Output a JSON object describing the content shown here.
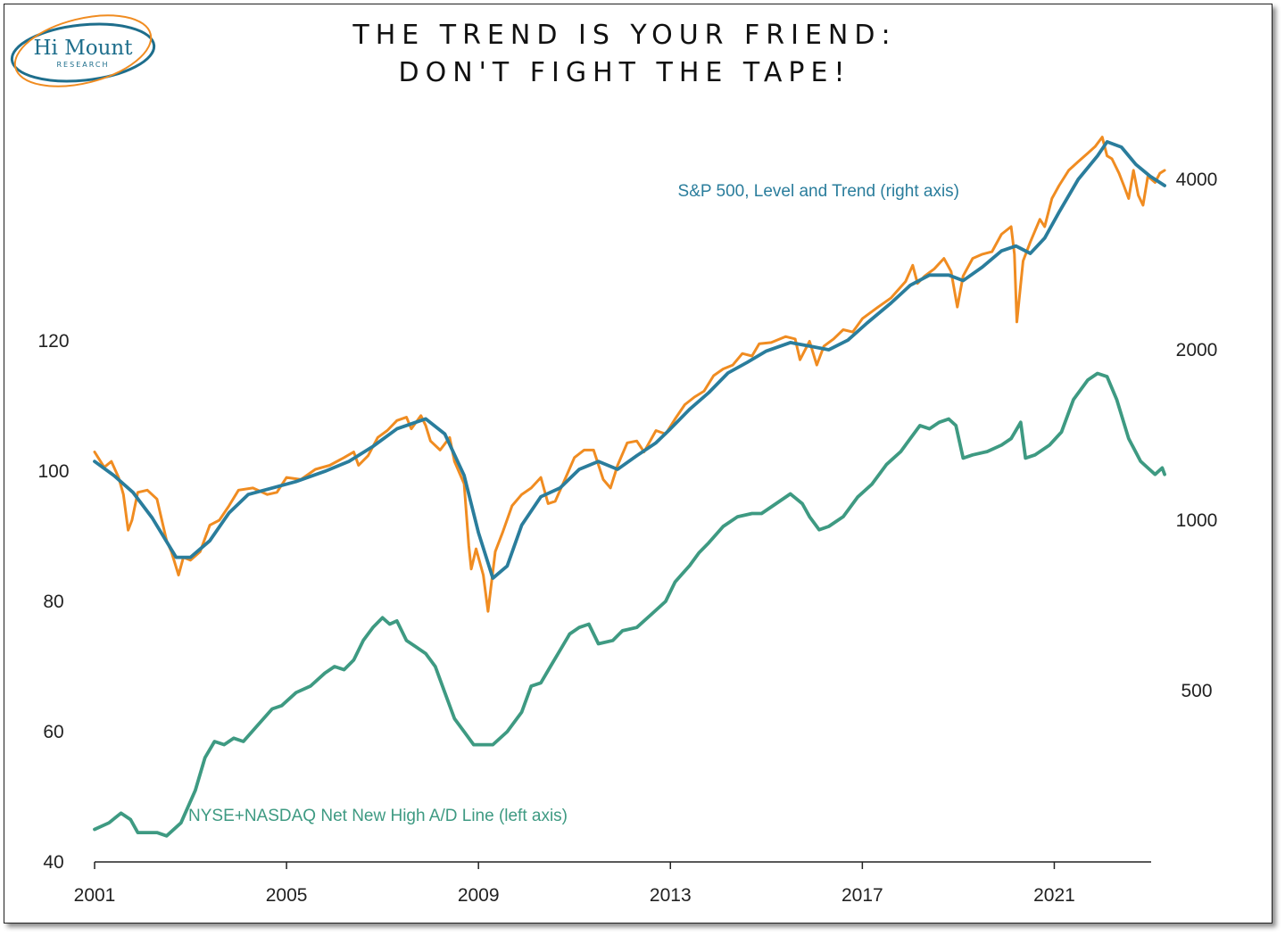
{
  "title": {
    "line1": "THE TREND IS YOUR FRIEND:",
    "line2": "DON'T FIGHT THE TAPE!"
  },
  "logo": {
    "name": "Hi Mount",
    "sub": "RESEARCH"
  },
  "colors": {
    "spx_level": "#F08C21",
    "spx_trend": "#2A7D9C",
    "ad_line": "#3E9A82",
    "axis": "#222222"
  },
  "chart_data": {
    "type": "line",
    "x_ticks": [
      "2001",
      "2005",
      "2009",
      "2013",
      "2017",
      "2021"
    ],
    "left_axis": {
      "ticks": [
        40,
        60,
        80,
        100,
        120
      ],
      "range": [
        40,
        160
      ]
    },
    "right_axis": {
      "scale": "log",
      "ticks": [
        500,
        1000,
        2000,
        4000
      ],
      "range": [
        180,
        5500
      ]
    },
    "annotations": {
      "spx": "S&P 500, Level and Trend (right axis)",
      "ad": "NYSE+NASDAQ Net New High A/D Line (left axis)"
    },
    "series": [
      {
        "axis": "right",
        "points": [
          [
            2001.0,
            1320
          ],
          [
            2001.2,
            1240
          ],
          [
            2001.35,
            1270
          ],
          [
            2001.5,
            1190
          ],
          [
            2001.6,
            1110
          ],
          [
            2001.7,
            960
          ],
          [
            2001.78,
            1000
          ],
          [
            2001.9,
            1120
          ],
          [
            2002.1,
            1130
          ],
          [
            2002.3,
            1090
          ],
          [
            2002.5,
            920
          ],
          [
            2002.6,
            880
          ],
          [
            2002.75,
            800
          ],
          [
            2002.85,
            860
          ],
          [
            2003.0,
            850
          ],
          [
            2003.2,
            880
          ],
          [
            2003.4,
            980
          ],
          [
            2003.6,
            1000
          ],
          [
            2003.8,
            1060
          ],
          [
            2004.0,
            1130
          ],
          [
            2004.3,
            1140
          ],
          [
            2004.6,
            1110
          ],
          [
            2004.8,
            1120
          ],
          [
            2005.0,
            1190
          ],
          [
            2005.3,
            1180
          ],
          [
            2005.6,
            1230
          ],
          [
            2005.9,
            1250
          ],
          [
            2006.2,
            1290
          ],
          [
            2006.4,
            1320
          ],
          [
            2006.5,
            1250
          ],
          [
            2006.7,
            1300
          ],
          [
            2006.9,
            1400
          ],
          [
            2007.1,
            1440
          ],
          [
            2007.3,
            1500
          ],
          [
            2007.5,
            1520
          ],
          [
            2007.6,
            1450
          ],
          [
            2007.8,
            1530
          ],
          [
            2007.9,
            1470
          ],
          [
            2008.0,
            1380
          ],
          [
            2008.2,
            1330
          ],
          [
            2008.4,
            1400
          ],
          [
            2008.5,
            1270
          ],
          [
            2008.7,
            1160
          ],
          [
            2008.8,
            900
          ],
          [
            2008.85,
            820
          ],
          [
            2008.95,
            890
          ],
          [
            2009.1,
            800
          ],
          [
            2009.2,
            690
          ],
          [
            2009.35,
            880
          ],
          [
            2009.5,
            950
          ],
          [
            2009.7,
            1060
          ],
          [
            2009.9,
            1110
          ],
          [
            2010.1,
            1140
          ],
          [
            2010.3,
            1190
          ],
          [
            2010.45,
            1070
          ],
          [
            2010.6,
            1080
          ],
          [
            2010.8,
            1180
          ],
          [
            2011.0,
            1290
          ],
          [
            2011.2,
            1330
          ],
          [
            2011.4,
            1330
          ],
          [
            2011.6,
            1180
          ],
          [
            2011.75,
            1140
          ],
          [
            2011.9,
            1250
          ],
          [
            2012.1,
            1370
          ],
          [
            2012.3,
            1380
          ],
          [
            2012.45,
            1320
          ],
          [
            2012.7,
            1440
          ],
          [
            2012.9,
            1420
          ],
          [
            2013.1,
            1510
          ],
          [
            2013.3,
            1600
          ],
          [
            2013.5,
            1650
          ],
          [
            2013.7,
            1690
          ],
          [
            2013.9,
            1800
          ],
          [
            2014.1,
            1850
          ],
          [
            2014.3,
            1880
          ],
          [
            2014.5,
            1970
          ],
          [
            2014.7,
            1950
          ],
          [
            2014.85,
            2050
          ],
          [
            2015.1,
            2060
          ],
          [
            2015.4,
            2110
          ],
          [
            2015.6,
            2090
          ],
          [
            2015.7,
            1920
          ],
          [
            2015.9,
            2070
          ],
          [
            2016.05,
            1880
          ],
          [
            2016.2,
            2030
          ],
          [
            2016.4,
            2090
          ],
          [
            2016.6,
            2170
          ],
          [
            2016.8,
            2150
          ],
          [
            2017.0,
            2270
          ],
          [
            2017.3,
            2370
          ],
          [
            2017.6,
            2470
          ],
          [
            2017.9,
            2640
          ],
          [
            2018.05,
            2820
          ],
          [
            2018.15,
            2620
          ],
          [
            2018.3,
            2700
          ],
          [
            2018.5,
            2780
          ],
          [
            2018.7,
            2900
          ],
          [
            2018.85,
            2750
          ],
          [
            2018.98,
            2380
          ],
          [
            2019.1,
            2700
          ],
          [
            2019.3,
            2900
          ],
          [
            2019.5,
            2950
          ],
          [
            2019.7,
            2980
          ],
          [
            2019.9,
            3200
          ],
          [
            2020.1,
            3300
          ],
          [
            2020.17,
            2950
          ],
          [
            2020.22,
            2240
          ],
          [
            2020.35,
            2870
          ],
          [
            2020.5,
            3100
          ],
          [
            2020.7,
            3400
          ],
          [
            2020.8,
            3300
          ],
          [
            2020.95,
            3700
          ],
          [
            2021.1,
            3900
          ],
          [
            2021.3,
            4150
          ],
          [
            2021.5,
            4300
          ],
          [
            2021.7,
            4450
          ],
          [
            2021.85,
            4570
          ],
          [
            2022.0,
            4750
          ],
          [
            2022.1,
            4400
          ],
          [
            2022.2,
            4350
          ],
          [
            2022.35,
            4100
          ],
          [
            2022.45,
            3900
          ],
          [
            2022.55,
            3700
          ],
          [
            2022.65,
            4150
          ],
          [
            2022.75,
            3750
          ],
          [
            2022.85,
            3600
          ],
          [
            2022.95,
            4050
          ],
          [
            2023.1,
            3950
          ],
          [
            2023.2,
            4100
          ],
          [
            2023.3,
            4150
          ]
        ]
      },
      {
        "axis": "right",
        "points": [
          [
            2001.0,
            1270
          ],
          [
            2001.4,
            1200
          ],
          [
            2001.8,
            1120
          ],
          [
            2002.2,
            1010
          ],
          [
            2002.7,
            860
          ],
          [
            2003.0,
            860
          ],
          [
            2003.4,
            920
          ],
          [
            2003.8,
            1030
          ],
          [
            2004.2,
            1110
          ],
          [
            2004.7,
            1140
          ],
          [
            2005.2,
            1170
          ],
          [
            2005.8,
            1220
          ],
          [
            2006.3,
            1270
          ],
          [
            2006.8,
            1350
          ],
          [
            2007.3,
            1450
          ],
          [
            2007.9,
            1510
          ],
          [
            2008.3,
            1420
          ],
          [
            2008.7,
            1200
          ],
          [
            2009.0,
            950
          ],
          [
            2009.3,
            790
          ],
          [
            2009.6,
            830
          ],
          [
            2009.9,
            980
          ],
          [
            2010.3,
            1100
          ],
          [
            2010.7,
            1140
          ],
          [
            2011.1,
            1230
          ],
          [
            2011.5,
            1270
          ],
          [
            2011.9,
            1230
          ],
          [
            2012.3,
            1300
          ],
          [
            2012.7,
            1370
          ],
          [
            2013.0,
            1450
          ],
          [
            2013.4,
            1570
          ],
          [
            2013.8,
            1680
          ],
          [
            2014.2,
            1820
          ],
          [
            2014.6,
            1900
          ],
          [
            2015.0,
            1990
          ],
          [
            2015.5,
            2060
          ],
          [
            2015.9,
            2030
          ],
          [
            2016.3,
            2000
          ],
          [
            2016.7,
            2080
          ],
          [
            2017.1,
            2230
          ],
          [
            2017.6,
            2420
          ],
          [
            2018.0,
            2600
          ],
          [
            2018.4,
            2710
          ],
          [
            2018.8,
            2710
          ],
          [
            2019.1,
            2650
          ],
          [
            2019.5,
            2800
          ],
          [
            2019.9,
            2990
          ],
          [
            2020.2,
            3050
          ],
          [
            2020.5,
            2960
          ],
          [
            2020.8,
            3150
          ],
          [
            2021.1,
            3500
          ],
          [
            2021.5,
            4000
          ],
          [
            2021.9,
            4400
          ],
          [
            2022.1,
            4660
          ],
          [
            2022.4,
            4560
          ],
          [
            2022.7,
            4250
          ],
          [
            2023.0,
            4050
          ],
          [
            2023.3,
            3900
          ]
        ]
      },
      {
        "axis": "left",
        "points": [
          [
            2001.0,
            45
          ],
          [
            2001.3,
            46
          ],
          [
            2001.55,
            47.5
          ],
          [
            2001.75,
            46.5
          ],
          [
            2001.9,
            44.5
          ],
          [
            2002.3,
            44.5
          ],
          [
            2002.5,
            44
          ],
          [
            2002.8,
            46
          ],
          [
            2003.1,
            51
          ],
          [
            2003.3,
            56
          ],
          [
            2003.5,
            58.5
          ],
          [
            2003.7,
            58
          ],
          [
            2003.9,
            59
          ],
          [
            2004.1,
            58.5
          ],
          [
            2004.4,
            61
          ],
          [
            2004.7,
            63.5
          ],
          [
            2004.9,
            64
          ],
          [
            2005.2,
            66
          ],
          [
            2005.5,
            67
          ],
          [
            2005.8,
            69
          ],
          [
            2006.0,
            70
          ],
          [
            2006.2,
            69.5
          ],
          [
            2006.4,
            71
          ],
          [
            2006.6,
            74
          ],
          [
            2006.8,
            76
          ],
          [
            2007.0,
            77.5
          ],
          [
            2007.15,
            76.5
          ],
          [
            2007.3,
            77
          ],
          [
            2007.5,
            74
          ],
          [
            2007.7,
            73
          ],
          [
            2007.9,
            72
          ],
          [
            2008.1,
            70
          ],
          [
            2008.3,
            66
          ],
          [
            2008.5,
            62
          ],
          [
            2008.7,
            60
          ],
          [
            2008.9,
            58
          ],
          [
            2009.3,
            58
          ],
          [
            2009.6,
            60
          ],
          [
            2009.9,
            63
          ],
          [
            2010.1,
            67
          ],
          [
            2010.3,
            67.5
          ],
          [
            2010.5,
            70
          ],
          [
            2010.7,
            72.5
          ],
          [
            2010.9,
            75
          ],
          [
            2011.1,
            76
          ],
          [
            2011.3,
            76.5
          ],
          [
            2011.5,
            73.5
          ],
          [
            2011.8,
            74
          ],
          [
            2012.0,
            75.5
          ],
          [
            2012.3,
            76
          ],
          [
            2012.6,
            78
          ],
          [
            2012.9,
            80
          ],
          [
            2013.1,
            83
          ],
          [
            2013.4,
            85.5
          ],
          [
            2013.6,
            87.5
          ],
          [
            2013.8,
            89
          ],
          [
            2014.1,
            91.5
          ],
          [
            2014.4,
            93
          ],
          [
            2014.7,
            93.5
          ],
          [
            2014.9,
            93.5
          ],
          [
            2015.2,
            95
          ],
          [
            2015.5,
            96.5
          ],
          [
            2015.75,
            95
          ],
          [
            2015.9,
            93
          ],
          [
            2016.1,
            91
          ],
          [
            2016.3,
            91.5
          ],
          [
            2016.6,
            93
          ],
          [
            2016.9,
            96
          ],
          [
            2017.2,
            98
          ],
          [
            2017.5,
            101
          ],
          [
            2017.8,
            103
          ],
          [
            2018.0,
            105
          ],
          [
            2018.2,
            107
          ],
          [
            2018.4,
            106.5
          ],
          [
            2018.6,
            107.5
          ],
          [
            2018.8,
            108
          ],
          [
            2018.95,
            107
          ],
          [
            2019.1,
            102
          ],
          [
            2019.3,
            102.5
          ],
          [
            2019.6,
            103
          ],
          [
            2019.9,
            104
          ],
          [
            2020.1,
            105
          ],
          [
            2020.3,
            107.5
          ],
          [
            2020.4,
            102
          ],
          [
            2020.6,
            102.5
          ],
          [
            2020.9,
            104
          ],
          [
            2021.15,
            106
          ],
          [
            2021.4,
            111
          ],
          [
            2021.7,
            114
          ],
          [
            2021.9,
            115
          ],
          [
            2022.1,
            114.5
          ],
          [
            2022.3,
            111
          ],
          [
            2022.55,
            105
          ],
          [
            2022.8,
            101.5
          ],
          [
            2022.95,
            100.5
          ],
          [
            2023.1,
            99.5
          ],
          [
            2023.25,
            100.5
          ],
          [
            2023.3,
            99.5
          ]
        ]
      }
    ]
  }
}
